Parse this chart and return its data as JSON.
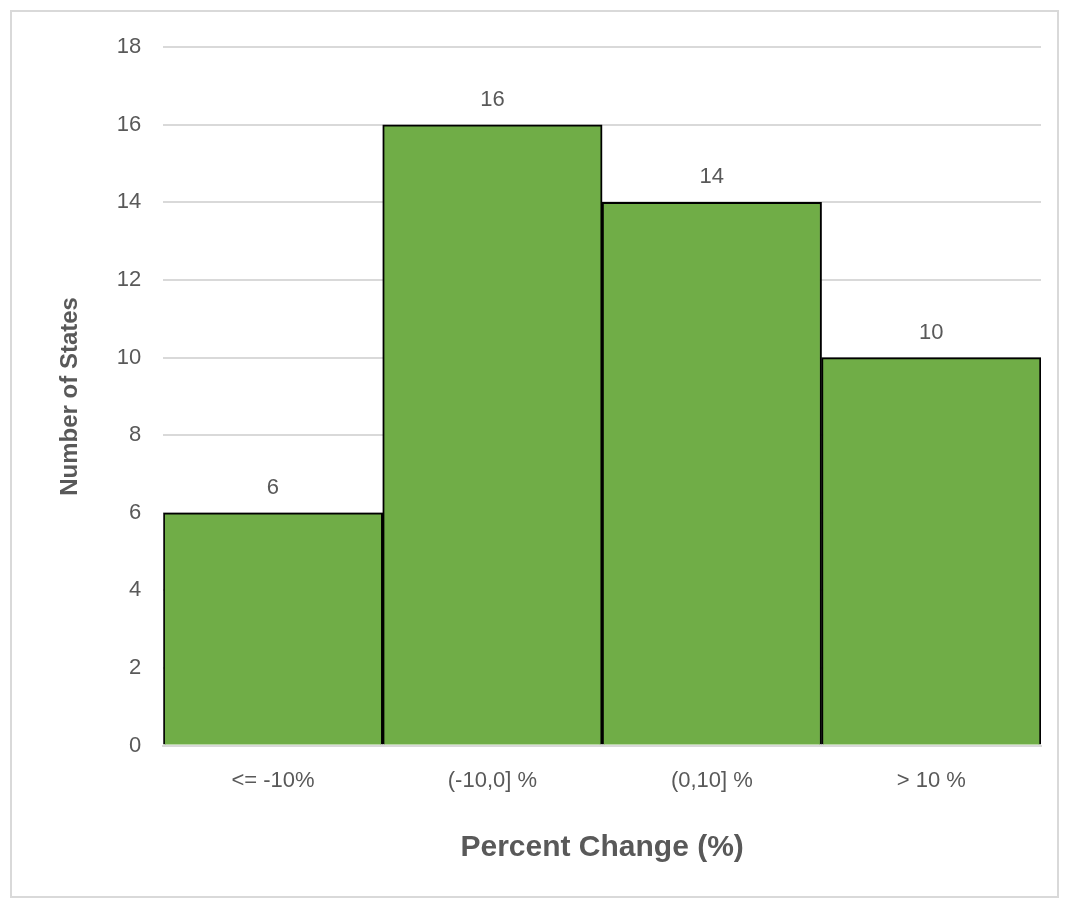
{
  "chart_data": {
    "type": "bar",
    "xlabel": "Percent Change (%)",
    "ylabel": "Number of States",
    "categories": [
      "<= -10%",
      "(-10,0] %",
      "(0,10] %",
      "> 10 %"
    ],
    "values": [
      6,
      16,
      14,
      10
    ],
    "color": "#70ad47",
    "ylim": [
      0,
      18
    ],
    "yticks": [
      0,
      2,
      4,
      6,
      8,
      10,
      12,
      14,
      16,
      18
    ],
    "grid": "y",
    "data_labels": true,
    "legend": false
  }
}
